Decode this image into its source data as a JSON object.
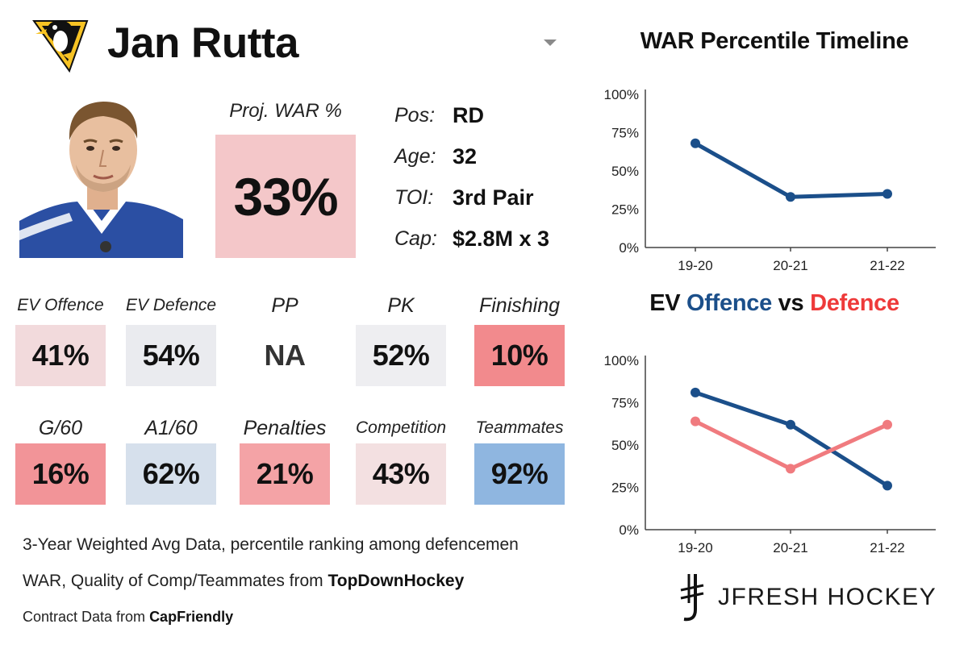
{
  "player": {
    "name": "Jan Rutta",
    "team_logo": "penguins-logo",
    "photo": "player-headshot"
  },
  "proj_war": {
    "label": "Proj. WAR %",
    "value": "33%",
    "color": "#f4c7c9"
  },
  "bio": [
    {
      "key": "Pos:",
      "value": "RD"
    },
    {
      "key": "Age:",
      "value": "32"
    },
    {
      "key": "TOI:",
      "value": "3rd Pair"
    },
    {
      "key": "Cap:",
      "value": "$2.8M x 3"
    }
  ],
  "stats_row1": [
    {
      "label": "EV Offence",
      "value": "41%",
      "color": "#f2dadc"
    },
    {
      "label": "EV Defence",
      "value": "54%",
      "color": "#eaebef"
    },
    {
      "label": "PP",
      "value": "NA",
      "color": "#ffffff"
    },
    {
      "label": "PK",
      "value": "52%",
      "color": "#eeeef1"
    },
    {
      "label": "Finishing",
      "value": "10%",
      "color": "#f28a8d"
    }
  ],
  "stats_row2": [
    {
      "label": "G/60",
      "value": "16%",
      "color": "#f29498"
    },
    {
      "label": "A1/60",
      "value": "62%",
      "color": "#d6e0ec"
    },
    {
      "label": "Penalties",
      "value": "21%",
      "color": "#f4a3a6"
    },
    {
      "label": "Competition",
      "value": "43%",
      "color": "#f3e0e1"
    },
    {
      "label": "Teammates",
      "value": "92%",
      "color": "#8fb6e0"
    }
  ],
  "notes": {
    "line1": "3-Year Weighted Avg Data, percentile ranking among defencemen",
    "line2_prefix": "WAR, Quality of Comp/Teammates from ",
    "line2_source": "TopDownHockey",
    "line3_prefix": "Contract Data from ",
    "line3_source": "CapFriendly"
  },
  "chart_data": [
    {
      "type": "line",
      "title": "WAR Percentile Timeline",
      "x": [
        "19-20",
        "20-21",
        "21-22"
      ],
      "yticks": [
        "0%",
        "25%",
        "50%",
        "75%",
        "100%"
      ],
      "ylim": [
        0,
        100
      ],
      "series": [
        {
          "values": [
            68,
            33,
            35
          ],
          "color": "#1b4f8a"
        }
      ]
    },
    {
      "type": "line",
      "title_parts": [
        "EV ",
        "Offence",
        " vs ",
        "Defence"
      ],
      "title_colors": [
        "#111111",
        "#1b4f8a",
        "#111111",
        "#ee3a3a"
      ],
      "x": [
        "19-20",
        "20-21",
        "21-22"
      ],
      "yticks": [
        "0%",
        "25%",
        "50%",
        "75%",
        "100%"
      ],
      "ylim": [
        0,
        100
      ],
      "series": [
        {
          "values": [
            81,
            62,
            26
          ],
          "color": "#1b4f8a"
        },
        {
          "values": [
            64,
            36,
            62
          ],
          "color": "#f07b7f"
        }
      ]
    }
  ],
  "brand": {
    "text": "JFRESH HOCKEY",
    "icon": "jfresh-logo-icon"
  }
}
